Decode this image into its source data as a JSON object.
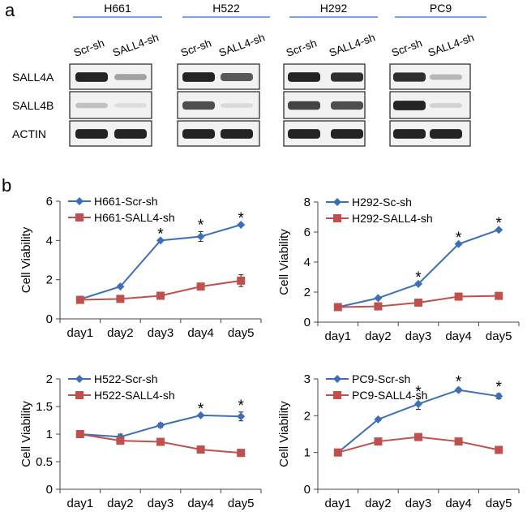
{
  "panel_a": {
    "label": "a",
    "cell_lines": [
      "H661",
      "H522",
      "H292",
      "PC9"
    ],
    "lane_labels": [
      "Scr-sh",
      "SALL4-sh"
    ],
    "row_labels": [
      "SALL4A",
      "SALL4B",
      "ACTIN"
    ]
  },
  "panel_b": {
    "label": "b"
  },
  "styles": {
    "series1_color": "#3d6fb6",
    "series2_color": "#c0504d",
    "header_line_color": "#4a86d4"
  },
  "chart_data": [
    {
      "type": "line",
      "x": [
        "day1",
        "day2",
        "day3",
        "day4",
        "day5"
      ],
      "ylabel": "Cell Viability",
      "ylim": [
        0,
        6
      ],
      "yticks": [
        "0",
        "2",
        "4",
        "6"
      ],
      "series": [
        {
          "name": "H661-Scr-sh",
          "values": [
            1.0,
            1.65,
            4.0,
            4.2,
            4.8
          ],
          "errors": [
            0,
            0,
            0,
            0.25,
            0
          ]
        },
        {
          "name": "H661-SALL4-sh",
          "values": [
            0.97,
            1.02,
            1.18,
            1.65,
            1.95
          ],
          "errors": [
            0,
            0,
            0,
            0,
            0.3
          ]
        }
      ],
      "significance": [
        "",
        "",
        "*",
        "*",
        "*"
      ]
    },
    {
      "type": "line",
      "x": [
        "day1",
        "day2",
        "day3",
        "day4",
        "day5"
      ],
      "ylabel": "Cell Viability",
      "ylim": [
        0,
        8
      ],
      "yticks": [
        "0",
        "2",
        "4",
        "6",
        "8"
      ],
      "series": [
        {
          "name": "H292-Sc-sh",
          "values": [
            1.0,
            1.6,
            2.55,
            5.2,
            6.15
          ],
          "errors": [
            0,
            0,
            0,
            0,
            0
          ]
        },
        {
          "name": "H292-SALL4-sh",
          "values": [
            1.0,
            1.05,
            1.3,
            1.7,
            1.75
          ],
          "errors": [
            0,
            0,
            0,
            0,
            0
          ]
        }
      ],
      "significance": [
        "",
        "",
        "*",
        "*",
        "*"
      ]
    },
    {
      "type": "line",
      "x": [
        "day1",
        "day2",
        "day3",
        "day4",
        "day5"
      ],
      "ylabel": "Cell Viability",
      "ylim": [
        0,
        2
      ],
      "yticks": [
        "0",
        "0.5",
        "1",
        "1.5",
        "2"
      ],
      "series": [
        {
          "name": "H522-Scr-sh",
          "values": [
            1.0,
            0.95,
            1.16,
            1.34,
            1.32
          ],
          "errors": [
            0,
            0.05,
            0.04,
            0,
            0.08
          ]
        },
        {
          "name": "H522-SALL4-sh",
          "values": [
            1.0,
            0.88,
            0.86,
            0.72,
            0.66
          ],
          "errors": [
            0,
            0,
            0,
            0.05,
            0
          ]
        }
      ],
      "significance": [
        "",
        "",
        "",
        "*",
        "*"
      ]
    },
    {
      "type": "line",
      "x": [
        "day1",
        "day2",
        "day3",
        "day4",
        "day5"
      ],
      "ylabel": "Cell Viability",
      "ylim": [
        0,
        3
      ],
      "yticks": [
        "0",
        "1",
        "2",
        "3"
      ],
      "series": [
        {
          "name": "PC9-Scr-sh",
          "values": [
            1.0,
            1.9,
            2.32,
            2.7,
            2.53
          ],
          "errors": [
            0,
            0,
            0.15,
            0.05,
            0.07
          ]
        },
        {
          "name": "PC9-SALL4-sh",
          "values": [
            1.0,
            1.3,
            1.42,
            1.3,
            1.07
          ],
          "errors": [
            0,
            0,
            0,
            0,
            0
          ]
        }
      ],
      "significance": [
        "",
        "",
        "*",
        "*",
        "*"
      ]
    }
  ]
}
